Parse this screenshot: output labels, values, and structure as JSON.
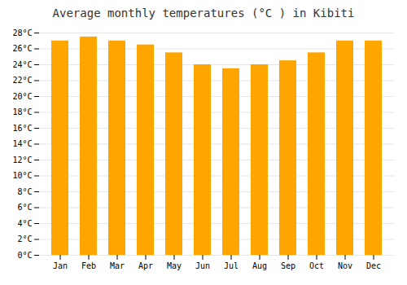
{
  "chart_data": {
    "type": "bar",
    "title": "Average monthly temperatures (°C ) in Kibiti",
    "categories": [
      "Jan",
      "Feb",
      "Mar",
      "Apr",
      "May",
      "Jun",
      "Jul",
      "Aug",
      "Sep",
      "Oct",
      "Nov",
      "Dec"
    ],
    "values": [
      27.0,
      27.5,
      27.0,
      26.5,
      25.5,
      24.0,
      23.5,
      24.0,
      24.5,
      25.5,
      27.0,
      27.0
    ],
    "color": "#FFA500",
    "ylim": [
      0,
      28
    ],
    "yticks": [
      {
        "value": 0,
        "label": "0°C"
      },
      {
        "value": 2,
        "label": "2°C"
      },
      {
        "value": 4,
        "label": "4°C"
      },
      {
        "value": 6,
        "label": "6°C"
      },
      {
        "value": 8,
        "label": "8°C"
      },
      {
        "value": 10,
        "label": "10°C"
      },
      {
        "value": 12,
        "label": "12°C"
      },
      {
        "value": 14,
        "label": "14°C"
      },
      {
        "value": 16,
        "label": "16°C"
      },
      {
        "value": 18,
        "label": "18°C"
      },
      {
        "value": 20,
        "label": "20°C"
      },
      {
        "value": 22,
        "label": "22°C"
      },
      {
        "value": 24,
        "label": "24°C"
      },
      {
        "value": 26,
        "label": "26°C"
      },
      {
        "value": 28,
        "label": "28°C"
      }
    ],
    "grid": true
  }
}
